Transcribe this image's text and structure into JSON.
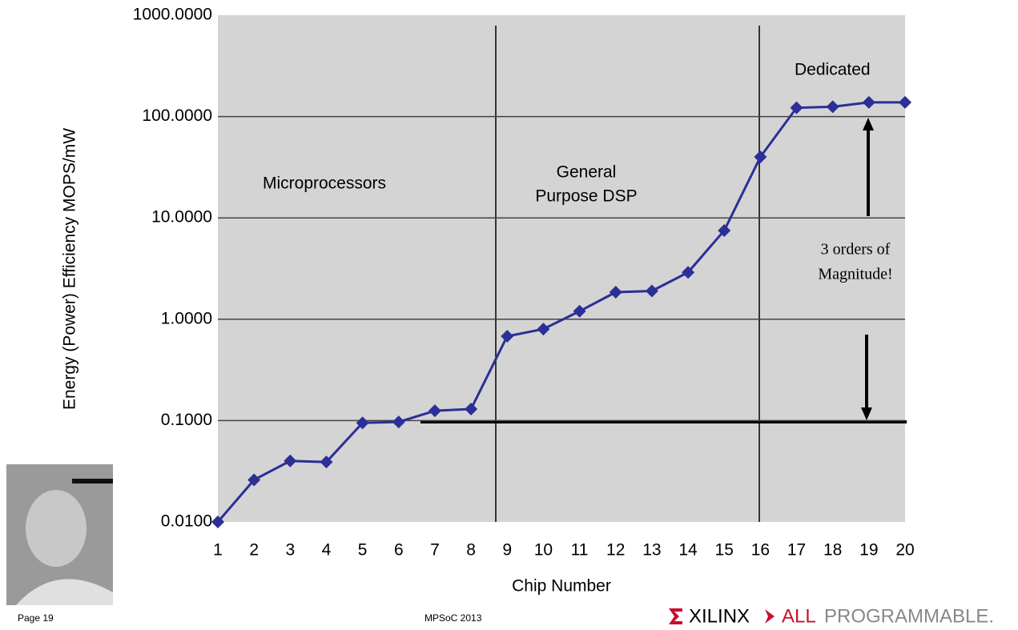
{
  "chart_data": {
    "type": "line",
    "y_label": "Energy (Power) Efficiency  MOPS/mW",
    "x_label": "Chip Number",
    "x": [
      1,
      2,
      3,
      4,
      5,
      6,
      7,
      8,
      9,
      10,
      11,
      12,
      13,
      14,
      15,
      16,
      17,
      18,
      19,
      20
    ],
    "xlim": [
      1,
      20
    ],
    "xticks": [
      1,
      2,
      3,
      4,
      5,
      6,
      7,
      8,
      9,
      10,
      11,
      12,
      13,
      14,
      15,
      16,
      17,
      18,
      19,
      20
    ],
    "series": [
      {
        "color": "#2b2f96",
        "values": [
          0.01,
          0.026,
          0.04,
          0.039,
          0.095,
          0.097,
          0.125,
          0.13,
          0.68,
          0.8,
          1.2,
          1.85,
          1.9,
          2.9,
          7.5,
          40,
          122,
          125,
          138,
          138
        ]
      }
    ],
    "log_y": true,
    "ylim": [
      0.01,
      1000
    ],
    "yticks": [
      {
        "value": 0.01,
        "label": "0.0100"
      },
      {
        "value": 0.1,
        "label": "0.1000"
      },
      {
        "value": 1,
        "label": "1.0000"
      },
      {
        "value": 10,
        "label": "10.0000"
      },
      {
        "value": 100,
        "label": "100.0000"
      },
      {
        "value": 1000,
        "label": "1000.0000"
      }
    ],
    "grid": true,
    "annotations": [
      "Microprocessors",
      "General",
      "Purpose DSP",
      "Dedicated",
      "3 orders of",
      "Magnitude!"
    ]
  },
  "footer": {
    "page": "Page 19",
    "event": "MPSoC 2013",
    "brand": "XILINX",
    "tag_all": "ALL",
    "tag_rest": "PROGRAMMABLE."
  }
}
